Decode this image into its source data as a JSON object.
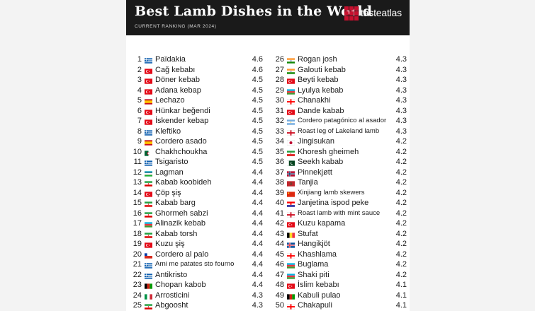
{
  "header": {
    "title": "Best Lamb Dishes in the World",
    "subtitle": "CURRENT RANKING (MAR 2024)",
    "brand": "tasteatlas"
  },
  "left_rows": [
    {
      "rank": "1",
      "flag": "greece",
      "name": "Païdakia",
      "score": "4.6"
    },
    {
      "rank": "2",
      "flag": "turkey",
      "name": "Cağ kebabı",
      "score": "4.6"
    },
    {
      "rank": "3",
      "flag": "turkey",
      "name": "Döner kebab",
      "score": "4.5"
    },
    {
      "rank": "4",
      "flag": "turkey",
      "name": "Adana kebap",
      "score": "4.5"
    },
    {
      "rank": "5",
      "flag": "spain",
      "name": "Lechazo",
      "score": "4.5"
    },
    {
      "rank": "6",
      "flag": "turkey",
      "name": "Hünkar beğendi",
      "score": "4.5"
    },
    {
      "rank": "7",
      "flag": "turkey",
      "name": "İskender kebap",
      "score": "4.5"
    },
    {
      "rank": "8",
      "flag": "greece",
      "name": "Kleftiko",
      "score": "4.5"
    },
    {
      "rank": "9",
      "flag": "spain",
      "name": "Cordero asado",
      "score": "4.5"
    },
    {
      "rank": "10",
      "flag": "algeria",
      "name": "Chakhchoukha",
      "score": "4.5"
    },
    {
      "rank": "11",
      "flag": "greece",
      "name": "Tsigaristo",
      "score": "4.5"
    },
    {
      "rank": "12",
      "flag": "uzbekistan",
      "name": "Lagman",
      "score": "4.4"
    },
    {
      "rank": "13",
      "flag": "iran",
      "name": "Kabab koobideh",
      "score": "4.4"
    },
    {
      "rank": "14",
      "flag": "turkey",
      "name": "Çöp şiş",
      "score": "4.4"
    },
    {
      "rank": "15",
      "flag": "iran",
      "name": "Kabab barg",
      "score": "4.4"
    },
    {
      "rank": "16",
      "flag": "iran",
      "name": "Ghormeh sabzi",
      "score": "4.4"
    },
    {
      "rank": "17",
      "flag": "azerbaijan",
      "name": "Alinazik kebab",
      "score": "4.4"
    },
    {
      "rank": "18",
      "flag": "iran",
      "name": "Kabab torsh",
      "score": "4.4"
    },
    {
      "rank": "19",
      "flag": "turkey",
      "name": "Kuzu şiş",
      "score": "4.4"
    },
    {
      "rank": "20",
      "flag": "chile",
      "name": "Cordero al palo",
      "score": "4.4"
    },
    {
      "rank": "21",
      "flag": "greece",
      "name": "Arni me patates sto fourno",
      "score": "4.4"
    },
    {
      "rank": "22",
      "flag": "greece",
      "name": "Antikristo",
      "score": "4.4"
    },
    {
      "rank": "23",
      "flag": "afghanistan",
      "name": "Chopan kabob",
      "score": "4.4"
    },
    {
      "rank": "24",
      "flag": "italy",
      "name": "Arrosticini",
      "score": "4.3"
    },
    {
      "rank": "25",
      "flag": "iran",
      "name": "Abgoosht",
      "score": "4.3"
    }
  ],
  "right_rows": [
    {
      "rank": "26",
      "flag": "india",
      "name": "Rogan josh",
      "score": "4.3"
    },
    {
      "rank": "27",
      "flag": "india",
      "name": "Galouti kebab",
      "score": "4.3"
    },
    {
      "rank": "28",
      "flag": "turkey",
      "name": "Beyti kebab",
      "score": "4.3"
    },
    {
      "rank": "29",
      "flag": "azerbaijan",
      "name": "Lyulya kebab",
      "score": "4.3"
    },
    {
      "rank": "30",
      "flag": "georgia",
      "name": "Chanakhi",
      "score": "4.3"
    },
    {
      "rank": "31",
      "flag": "turkey",
      "name": "Dande kabab",
      "score": "4.3"
    },
    {
      "rank": "32",
      "flag": "argentina",
      "name": "Cordero patagónico al asador",
      "score": "4.3"
    },
    {
      "rank": "33",
      "flag": "england",
      "name": "Roast leg of Lakeland lamb",
      "score": "4.3"
    },
    {
      "rank": "34",
      "flag": "japan",
      "name": "Jingisukan",
      "score": "4.2"
    },
    {
      "rank": "35",
      "flag": "iran",
      "name": "Khoresh gheimeh",
      "score": "4.2"
    },
    {
      "rank": "36",
      "flag": "pakistan",
      "name": "Seekh kabab",
      "score": "4.2"
    },
    {
      "rank": "37",
      "flag": "norway",
      "name": "Pinnekjøtt",
      "score": "4.2"
    },
    {
      "rank": "38",
      "flag": "morocco",
      "name": "Tanjia",
      "score": "4.2"
    },
    {
      "rank": "39",
      "flag": "china",
      "name": "Xinjiang lamb skewers",
      "score": "4.2"
    },
    {
      "rank": "40",
      "flag": "croatia",
      "name": "Janjetina ispod peke",
      "score": "4.2"
    },
    {
      "rank": "41",
      "flag": "england",
      "name": "Roast lamb with mint sauce",
      "score": "4.2"
    },
    {
      "rank": "42",
      "flag": "turkey",
      "name": "Kuzu kapama",
      "score": "4.2"
    },
    {
      "rank": "43",
      "flag": "belgium",
      "name": "Stufat",
      "score": "4.2"
    },
    {
      "rank": "44",
      "flag": "iceland",
      "name": "Hangikjöt",
      "score": "4.2"
    },
    {
      "rank": "45",
      "flag": "georgia",
      "name": "Khashlama",
      "score": "4.2"
    },
    {
      "rank": "46",
      "flag": "azerbaijan",
      "name": "Buglama",
      "score": "4.2"
    },
    {
      "rank": "47",
      "flag": "azerbaijan",
      "name": "Shaki piti",
      "score": "4.2"
    },
    {
      "rank": "48",
      "flag": "turkey",
      "name": "İslim kebabı",
      "score": "4.1"
    },
    {
      "rank": "49",
      "flag": "afghanistan",
      "name": "Kabuli pulao",
      "score": "4.1"
    },
    {
      "rank": "50",
      "flag": "georgia",
      "name": "Chakapuli",
      "score": "4.1"
    }
  ],
  "flag_colors": {
    "greece": [
      "#0d5eaf",
      "#ffffff"
    ],
    "turkey": [
      "#e30a17",
      "#ffffff"
    ],
    "spain": [
      "#c60b1e",
      "#ffc400"
    ],
    "algeria": [
      "#006233",
      "#ffffff"
    ],
    "uzbekistan": [
      "#1eb53a",
      "#0099b5"
    ],
    "iran": [
      "#239f40",
      "#da0000"
    ],
    "azerbaijan": [
      "#00b5e2",
      "#3f9c35"
    ],
    "chile": [
      "#0039a6",
      "#d52b1e"
    ],
    "afghanistan": [
      "#000000",
      "#009900"
    ],
    "italy": [
      "#009246",
      "#ce2b37"
    ],
    "india": [
      "#ff9933",
      "#138808"
    ],
    "georgia": [
      "#ffffff",
      "#ff0000"
    ],
    "argentina": [
      "#74acdf",
      "#ffffff"
    ],
    "england": [
      "#ffffff",
      "#ce1124"
    ],
    "japan": [
      "#ffffff",
      "#bc002d"
    ],
    "pakistan": [
      "#01411c",
      "#ffffff"
    ],
    "norway": [
      "#ba0c2f",
      "#00205b"
    ],
    "morocco": [
      "#c1272d",
      "#006233"
    ],
    "china": [
      "#de2910",
      "#ffde00"
    ],
    "croatia": [
      "#ff0000",
      "#171796"
    ],
    "belgium": [
      "#000000",
      "#fdda24"
    ],
    "iceland": [
      "#02529c",
      "#dc1e35"
    ]
  }
}
